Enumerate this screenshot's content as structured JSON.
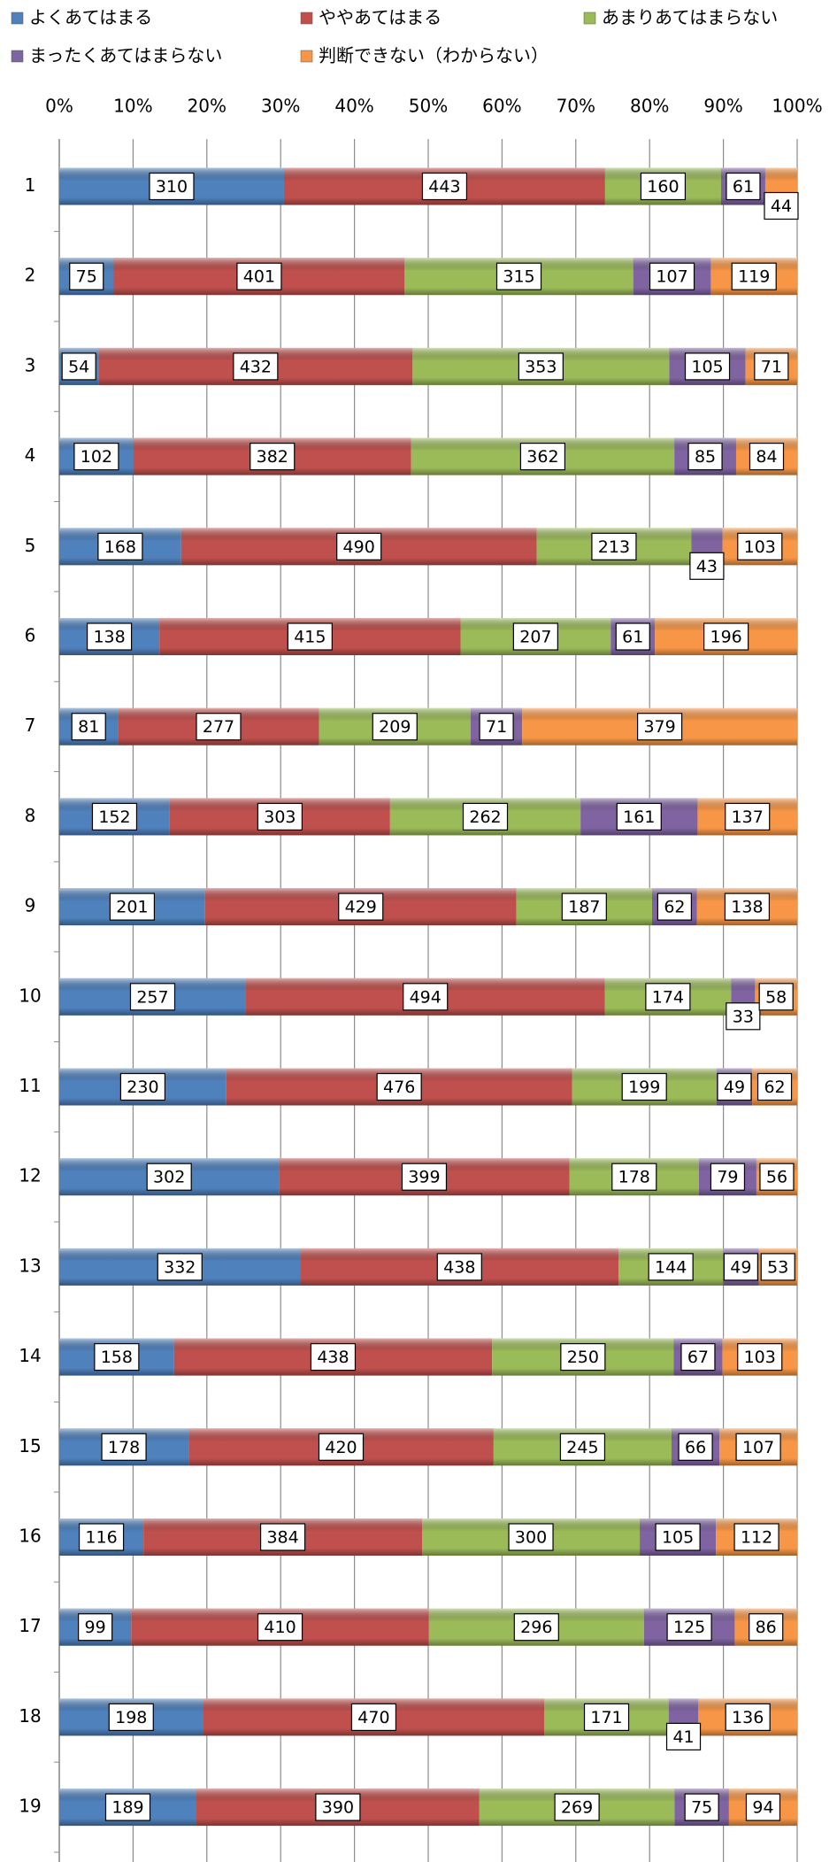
{
  "chart_data": {
    "type": "bar",
    "orientation": "horizontal",
    "stacked": "percent",
    "categories": [
      "1",
      "2",
      "3",
      "4",
      "5",
      "6",
      "7",
      "8",
      "9",
      "10",
      "11",
      "12",
      "13",
      "14",
      "15",
      "16",
      "17",
      "18",
      "19"
    ],
    "series": [
      {
        "name": "よくあてはまる",
        "color": "#4f81bd",
        "values": [
          310,
          75,
          54,
          102,
          168,
          138,
          81,
          152,
          201,
          257,
          230,
          302,
          332,
          158,
          178,
          116,
          99,
          198,
          189
        ]
      },
      {
        "name": "ややあてはまる",
        "color": "#c0504d",
        "values": [
          443,
          401,
          432,
          382,
          490,
          415,
          277,
          303,
          429,
          494,
          476,
          399,
          438,
          438,
          420,
          384,
          410,
          470,
          390
        ]
      },
      {
        "name": "あまりあてはまらない",
        "color": "#9bbb59",
        "values": [
          160,
          315,
          353,
          362,
          213,
          207,
          209,
          262,
          187,
          174,
          199,
          178,
          144,
          250,
          245,
          300,
          296,
          171,
          269
        ]
      },
      {
        "name": "まったくあてはまらない",
        "color": "#8064a2",
        "values": [
          61,
          107,
          105,
          85,
          43,
          61,
          71,
          161,
          62,
          33,
          49,
          79,
          49,
          67,
          66,
          105,
          125,
          41,
          75
        ]
      },
      {
        "name": "判断できない（わからない）",
        "color": "#f79646",
        "values": [
          44,
          119,
          71,
          84,
          103,
          196,
          379,
          137,
          138,
          58,
          62,
          56,
          53,
          103,
          107,
          112,
          86,
          136,
          94
        ]
      }
    ],
    "xlim": [
      0,
      100
    ],
    "xticks": [
      {
        "value": 0,
        "label": "0%"
      },
      {
        "value": 10,
        "label": "10%"
      },
      {
        "value": 20,
        "label": "20%"
      },
      {
        "value": 30,
        "label": "30%"
      },
      {
        "value": 40,
        "label": "40%"
      },
      {
        "value": 50,
        "label": "50%"
      },
      {
        "value": 60,
        "label": "60%"
      },
      {
        "value": 70,
        "label": "70%"
      },
      {
        "value": 80,
        "label": "80%"
      },
      {
        "value": 90,
        "label": "90%"
      },
      {
        "value": 100,
        "label": "100%"
      }
    ],
    "grid": true,
    "legend": "top"
  }
}
